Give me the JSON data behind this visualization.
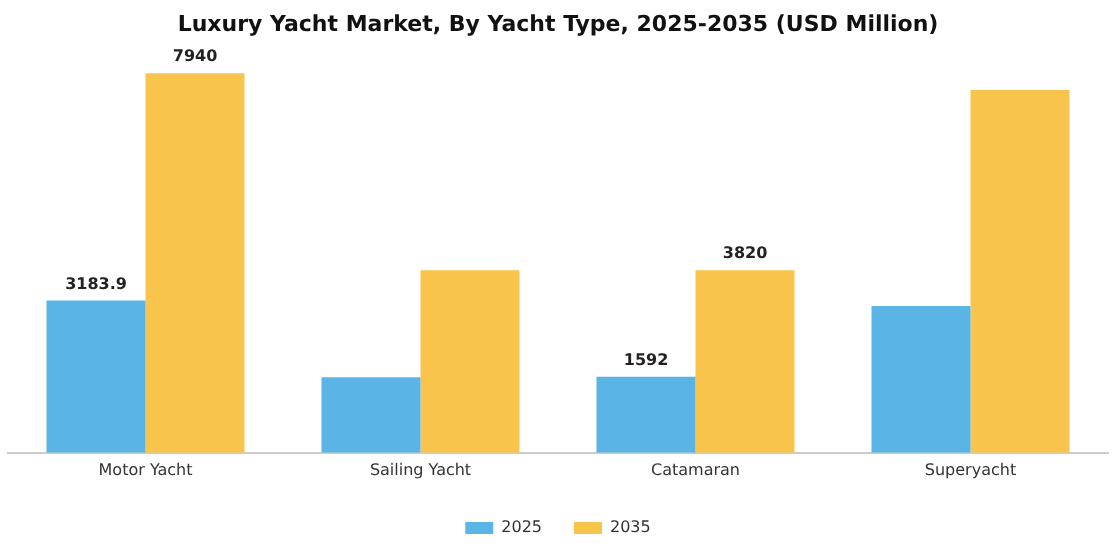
{
  "chart_data": {
    "type": "bar",
    "title": "Luxury Yacht Market, By Yacht Type, 2025-2035 (USD Million)",
    "categories": [
      "Motor Yacht",
      "Sailing Yacht",
      "Catamaran",
      "Superyacht"
    ],
    "series": [
      {
        "name": "2025",
        "color": "#5ab4e5",
        "values": [
          3183.9,
          1580,
          1592,
          3070
        ],
        "value_labels": [
          "3183.9",
          null,
          "1592",
          null
        ]
      },
      {
        "name": "2035",
        "color": "#f9c44c",
        "values": [
          7940,
          3820,
          3820,
          7590
        ],
        "value_labels": [
          "7940",
          null,
          "3820",
          null
        ]
      }
    ],
    "legend": "bottom",
    "grid": false
  }
}
